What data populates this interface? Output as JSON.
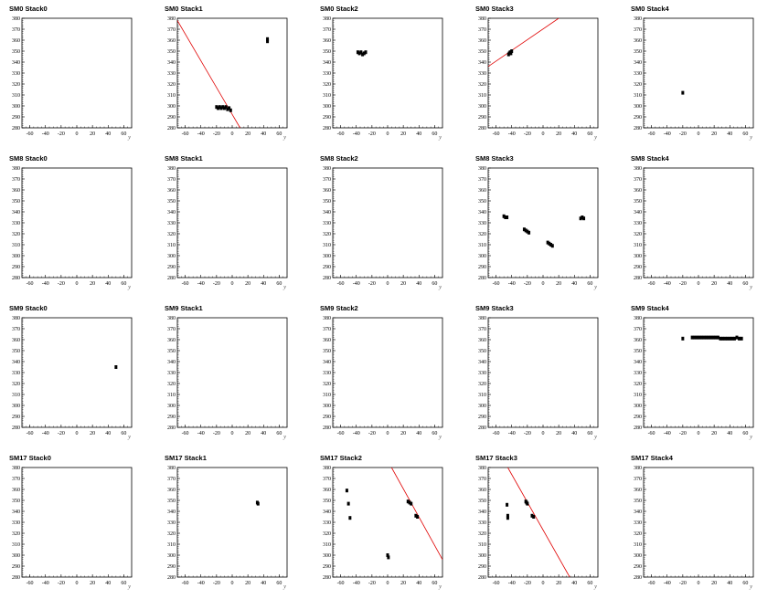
{
  "chart_data": [
    {
      "type": "scatter",
      "title": "SM0 Stack0",
      "xlabel": "y",
      "xlim": [
        -70,
        70
      ],
      "ylim": [
        280,
        380
      ],
      "xticks": [
        -60,
        -40,
        -20,
        0,
        20,
        40,
        60
      ],
      "yticks": [
        280,
        290,
        300,
        310,
        320,
        330,
        340,
        350,
        360,
        370,
        380
      ],
      "series": [
        {
          "x": [],
          "y": []
        }
      ],
      "lines": []
    },
    {
      "type": "scatter",
      "title": "SM0 Stack1",
      "xlabel": "y",
      "xlim": [
        -70,
        70
      ],
      "ylim": [
        280,
        380
      ],
      "xticks": [
        -60,
        -40,
        -20,
        0,
        20,
        40,
        60
      ],
      "yticks": [
        280,
        290,
        300,
        310,
        320,
        330,
        340,
        350,
        360,
        370,
        380
      ],
      "series": [
        {
          "x": [
            -20,
            -18,
            -16,
            -14,
            -12,
            -10,
            -8,
            -6,
            -4,
            -2,
            45,
            45
          ],
          "y": [
            299,
            298,
            299,
            298,
            299,
            298,
            299,
            297,
            298,
            296,
            361,
            359
          ]
        }
      ],
      "lines": [
        {
          "x1": -70,
          "y1": 378,
          "x2": 10,
          "y2": 280,
          "color": "#e00000"
        }
      ]
    },
    {
      "type": "scatter",
      "title": "SM0 Stack2",
      "xlabel": "y",
      "xlim": [
        -70,
        70
      ],
      "ylim": [
        280,
        380
      ],
      "xticks": [
        -60,
        -40,
        -20,
        0,
        20,
        40,
        60
      ],
      "yticks": [
        280,
        290,
        300,
        310,
        320,
        330,
        340,
        350,
        360,
        370,
        380
      ],
      "series": [
        {
          "x": [
            -38,
            -36,
            -34,
            -32,
            -30,
            -28
          ],
          "y": [
            349,
            348,
            349,
            347,
            348,
            349
          ]
        }
      ],
      "lines": []
    },
    {
      "type": "scatter",
      "title": "SM0 Stack3",
      "xlabel": "y",
      "xlim": [
        -70,
        70
      ],
      "ylim": [
        280,
        380
      ],
      "xticks": [
        -60,
        -40,
        -20,
        0,
        20,
        40,
        60
      ],
      "yticks": [
        280,
        290,
        300,
        310,
        320,
        330,
        340,
        350,
        360,
        370,
        380
      ],
      "series": [
        {
          "x": [
            -44,
            -43,
            -42,
            -41,
            -40
          ],
          "y": [
            347,
            348,
            349,
            348,
            350
          ]
        }
      ],
      "lines": [
        {
          "x1": -70,
          "y1": 336,
          "x2": 20,
          "y2": 380,
          "color": "#e00000"
        }
      ]
    },
    {
      "type": "scatter",
      "title": "SM0 Stack4",
      "xlabel": "y",
      "xlim": [
        -70,
        70
      ],
      "ylim": [
        280,
        380
      ],
      "xticks": [
        -60,
        -40,
        -20,
        0,
        20,
        40,
        60
      ],
      "yticks": [
        280,
        290,
        300,
        310,
        320,
        330,
        340,
        350,
        360,
        370,
        380
      ],
      "series": [
        {
          "x": [
            -20
          ],
          "y": [
            312
          ]
        }
      ],
      "lines": []
    },
    {
      "type": "scatter",
      "title": "SM8 Stack0",
      "xlabel": "y",
      "xlim": [
        -70,
        70
      ],
      "ylim": [
        280,
        380
      ],
      "xticks": [
        -60,
        -40,
        -20,
        0,
        20,
        40,
        60
      ],
      "yticks": [
        280,
        290,
        300,
        310,
        320,
        330,
        340,
        350,
        360,
        370,
        380
      ],
      "series": [
        {
          "x": [],
          "y": []
        }
      ],
      "lines": []
    },
    {
      "type": "scatter",
      "title": "SM8 Stack1",
      "xlabel": "y",
      "xlim": [
        -70,
        70
      ],
      "ylim": [
        280,
        380
      ],
      "xticks": [
        -60,
        -40,
        -20,
        0,
        20,
        40,
        60
      ],
      "yticks": [
        280,
        290,
        300,
        310,
        320,
        330,
        340,
        350,
        360,
        370,
        380
      ],
      "series": [
        {
          "x": [],
          "y": []
        }
      ],
      "lines": []
    },
    {
      "type": "scatter",
      "title": "SM8 Stack2",
      "xlabel": "y",
      "xlim": [
        -70,
        70
      ],
      "ylim": [
        280,
        380
      ],
      "xticks": [
        -60,
        -40,
        -20,
        0,
        20,
        40,
        60
      ],
      "yticks": [
        280,
        290,
        300,
        310,
        320,
        330,
        340,
        350,
        360,
        370,
        380
      ],
      "series": [
        {
          "x": [],
          "y": []
        }
      ],
      "lines": []
    },
    {
      "type": "scatter",
      "title": "SM8 Stack3",
      "xlabel": "y",
      "xlim": [
        -70,
        70
      ],
      "ylim": [
        280,
        380
      ],
      "xticks": [
        -60,
        -40,
        -20,
        0,
        20,
        40,
        60
      ],
      "yticks": [
        280,
        290,
        300,
        310,
        320,
        330,
        340,
        350,
        360,
        370,
        380
      ],
      "series": [
        {
          "x": [
            -50,
            -48,
            -46,
            -24,
            -22,
            -20,
            -18,
            6,
            8,
            10,
            12,
            48,
            50,
            52
          ],
          "y": [
            336,
            335,
            335,
            324,
            323,
            322,
            321,
            312,
            311,
            310,
            309,
            334,
            335,
            334
          ]
        }
      ],
      "lines": []
    },
    {
      "type": "scatter",
      "title": "SM8 Stack4",
      "xlabel": "y",
      "xlim": [
        -70,
        70
      ],
      "ylim": [
        280,
        380
      ],
      "xticks": [
        -60,
        -40,
        -20,
        0,
        20,
        40,
        60
      ],
      "yticks": [
        280,
        290,
        300,
        310,
        320,
        330,
        340,
        350,
        360,
        370,
        380
      ],
      "series": [
        {
          "x": [],
          "y": []
        }
      ],
      "lines": []
    },
    {
      "type": "scatter",
      "title": "SM9 Stack0",
      "xlabel": "y",
      "xlim": [
        -70,
        70
      ],
      "ylim": [
        280,
        380
      ],
      "xticks": [
        -60,
        -40,
        -20,
        0,
        20,
        40,
        60
      ],
      "yticks": [
        280,
        290,
        300,
        310,
        320,
        330,
        340,
        350,
        360,
        370,
        380
      ],
      "series": [
        {
          "x": [
            50
          ],
          "y": [
            335
          ]
        }
      ],
      "lines": []
    },
    {
      "type": "scatter",
      "title": "SM9 Stack1",
      "xlabel": "y",
      "xlim": [
        -70,
        70
      ],
      "ylim": [
        280,
        380
      ],
      "xticks": [
        -60,
        -40,
        -20,
        0,
        20,
        40,
        60
      ],
      "yticks": [
        280,
        290,
        300,
        310,
        320,
        330,
        340,
        350,
        360,
        370,
        380
      ],
      "series": [
        {
          "x": [],
          "y": []
        }
      ],
      "lines": []
    },
    {
      "type": "scatter",
      "title": "SM9 Stack2",
      "xlabel": "y",
      "xlim": [
        -70,
        70
      ],
      "ylim": [
        280,
        380
      ],
      "xticks": [
        -60,
        -40,
        -20,
        0,
        20,
        40,
        60
      ],
      "yticks": [
        280,
        290,
        300,
        310,
        320,
        330,
        340,
        350,
        360,
        370,
        380
      ],
      "series": [
        {
          "x": [],
          "y": []
        }
      ],
      "lines": []
    },
    {
      "type": "scatter",
      "title": "SM9 Stack3",
      "xlabel": "y",
      "xlim": [
        -70,
        70
      ],
      "ylim": [
        280,
        380
      ],
      "xticks": [
        -60,
        -40,
        -20,
        0,
        20,
        40,
        60
      ],
      "yticks": [
        280,
        290,
        300,
        310,
        320,
        330,
        340,
        350,
        360,
        370,
        380
      ],
      "series": [
        {
          "x": [],
          "y": []
        }
      ],
      "lines": []
    },
    {
      "type": "scatter",
      "title": "SM9 Stack4",
      "xlabel": "y",
      "xlim": [
        -70,
        70
      ],
      "ylim": [
        280,
        380
      ],
      "xticks": [
        -60,
        -40,
        -20,
        0,
        20,
        40,
        60
      ],
      "yticks": [
        280,
        290,
        300,
        310,
        320,
        330,
        340,
        350,
        360,
        370,
        380
      ],
      "series": [
        {
          "x": [
            -20,
            -8,
            -5,
            -2,
            1,
            4,
            7,
            10,
            13,
            16,
            19,
            22,
            25,
            28,
            31,
            34,
            37,
            40,
            43,
            46,
            49,
            52,
            55
          ],
          "y": [
            361,
            362,
            362,
            362,
            362,
            362,
            362,
            362,
            362,
            362,
            362,
            362,
            362,
            361,
            361,
            361,
            361,
            361,
            361,
            361,
            362,
            361,
            361
          ]
        }
      ],
      "lines": []
    },
    {
      "type": "scatter",
      "title": "SM17 Stack0",
      "xlabel": "y",
      "xlim": [
        -70,
        70
      ],
      "ylim": [
        280,
        380
      ],
      "xticks": [
        -60,
        -40,
        -20,
        0,
        20,
        40,
        60
      ],
      "yticks": [
        280,
        290,
        300,
        310,
        320,
        330,
        340,
        350,
        360,
        370,
        380
      ],
      "series": [
        {
          "x": [],
          "y": []
        }
      ],
      "lines": []
    },
    {
      "type": "scatter",
      "title": "SM17 Stack1",
      "xlabel": "y",
      "xlim": [
        -70,
        70
      ],
      "ylim": [
        280,
        380
      ],
      "xticks": [
        -60,
        -40,
        -20,
        0,
        20,
        40,
        60
      ],
      "yticks": [
        280,
        290,
        300,
        310,
        320,
        330,
        340,
        350,
        360,
        370,
        380
      ],
      "series": [
        {
          "x": [
            32,
            33
          ],
          "y": [
            348,
            347
          ]
        }
      ],
      "lines": []
    },
    {
      "type": "scatter",
      "title": "SM17 Stack2",
      "xlabel": "y",
      "xlim": [
        -70,
        70
      ],
      "ylim": [
        280,
        380
      ],
      "xticks": [
        -60,
        -40,
        -20,
        0,
        20,
        40,
        60
      ],
      "yticks": [
        280,
        290,
        300,
        310,
        320,
        330,
        340,
        350,
        360,
        370,
        380
      ],
      "series": [
        {
          "x": [
            -52,
            -50,
            -48,
            0,
            1,
            26,
            28,
            30,
            36,
            38
          ],
          "y": [
            359,
            347,
            334,
            300,
            298,
            349,
            348,
            347,
            336,
            335
          ]
        }
      ],
      "lines": [
        {
          "x1": 5,
          "y1": 380,
          "x2": 70,
          "y2": 296,
          "color": "#e00000"
        }
      ]
    },
    {
      "type": "scatter",
      "title": "SM17 Stack3",
      "xlabel": "y",
      "xlim": [
        -70,
        70
      ],
      "ylim": [
        280,
        380
      ],
      "xticks": [
        -60,
        -40,
        -20,
        0,
        20,
        40,
        60
      ],
      "yticks": [
        280,
        290,
        300,
        310,
        320,
        330,
        340,
        350,
        360,
        370,
        380
      ],
      "series": [
        {
          "x": [
            -46,
            -45,
            -45,
            -22,
            -21,
            -20,
            -14,
            -12
          ],
          "y": [
            346,
            336,
            334,
            349,
            348,
            347,
            336,
            335
          ]
        }
      ],
      "lines": [
        {
          "x1": -45,
          "y1": 380,
          "x2": 34,
          "y2": 280,
          "color": "#e00000"
        }
      ]
    },
    {
      "type": "scatter",
      "title": "SM17 Stack4",
      "xlabel": "y",
      "xlim": [
        -70,
        70
      ],
      "ylim": [
        280,
        380
      ],
      "xticks": [
        -60,
        -40,
        -20,
        0,
        20,
        40,
        60
      ],
      "yticks": [
        280,
        290,
        300,
        310,
        320,
        330,
        340,
        350,
        360,
        370,
        380
      ],
      "series": [
        {
          "x": [],
          "y": []
        }
      ],
      "lines": []
    }
  ]
}
